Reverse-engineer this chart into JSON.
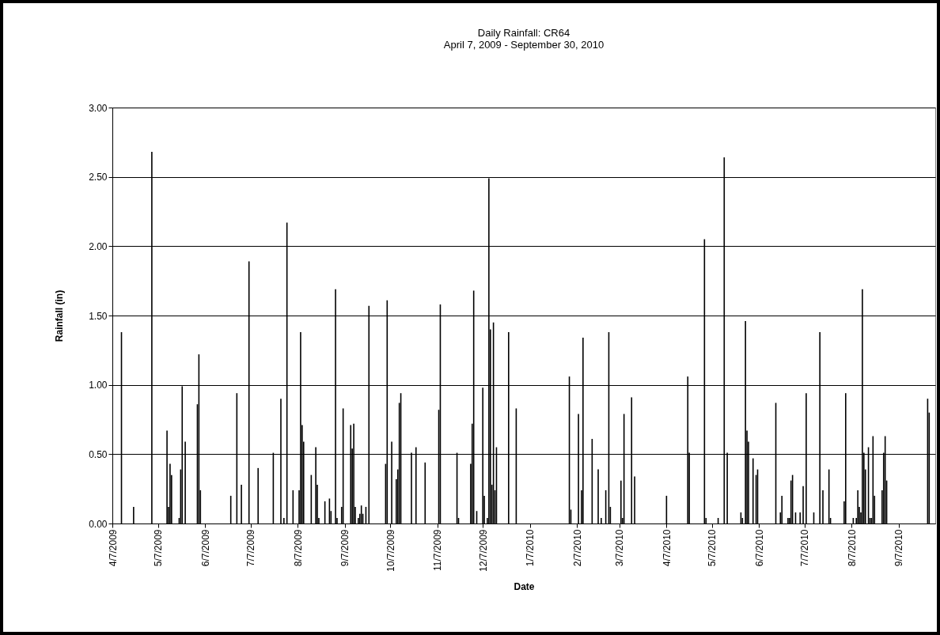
{
  "chart_data": {
    "type": "bar",
    "title": "Daily Rainfall: CR64",
    "subtitle": "April 7, 2009 - September 30, 2010",
    "xlabel": "Date",
    "ylabel": "Rainfall (in)",
    "x": [
      "2009-04-13",
      "2009-04-21",
      "2009-05-03",
      "2009-05-13",
      "2009-05-14",
      "2009-05-15",
      "2009-05-16",
      "2009-05-21",
      "2009-05-22",
      "2009-05-23",
      "2009-05-25",
      "2009-06-02",
      "2009-06-03",
      "2009-06-04",
      "2009-06-24",
      "2009-06-28",
      "2009-07-01",
      "2009-07-06",
      "2009-07-12",
      "2009-07-22",
      "2009-07-27",
      "2009-07-29",
      "2009-07-31",
      "2009-08-04",
      "2009-08-08",
      "2009-08-09",
      "2009-08-10",
      "2009-08-11",
      "2009-08-16",
      "2009-08-19",
      "2009-08-20",
      "2009-08-21",
      "2009-08-25",
      "2009-08-28",
      "2009-08-29",
      "2009-09-01",
      "2009-09-02",
      "2009-09-05",
      "2009-09-06",
      "2009-09-11",
      "2009-09-12",
      "2009-09-13",
      "2009-09-14",
      "2009-09-16",
      "2009-09-17",
      "2009-09-18",
      "2009-09-19",
      "2009-09-21",
      "2009-09-23",
      "2009-10-04",
      "2009-10-05",
      "2009-10-08",
      "2009-10-11",
      "2009-10-12",
      "2009-10-13",
      "2009-10-14",
      "2009-10-21",
      "2009-10-24",
      "2009-10-30",
      "2009-11-08",
      "2009-11-09",
      "2009-11-20",
      "2009-11-21",
      "2009-11-29",
      "2009-11-30",
      "2009-12-01",
      "2009-12-03",
      "2009-12-07",
      "2009-12-08",
      "2009-12-10",
      "2009-12-11",
      "2009-12-12",
      "2009-12-13",
      "2009-12-14",
      "2009-12-15",
      "2009-12-16",
      "2009-12-24",
      "2009-12-29",
      "2010-02-02",
      "2010-02-03",
      "2010-02-08",
      "2010-02-10",
      "2010-02-11",
      "2010-02-17",
      "2010-02-21",
      "2010-02-23",
      "2010-02-26",
      "2010-02-28",
      "2010-03-01",
      "2010-03-08",
      "2010-03-09",
      "2010-03-10",
      "2010-03-15",
      "2010-03-17",
      "2010-04-07",
      "2010-04-21",
      "2010-04-22",
      "2010-05-02",
      "2010-05-03",
      "2010-05-11",
      "2010-05-15",
      "2010-05-17",
      "2010-05-26",
      "2010-05-27",
      "2010-05-29",
      "2010-05-30",
      "2010-05-31",
      "2010-06-03",
      "2010-06-05",
      "2010-06-06",
      "2010-06-18",
      "2010-06-21",
      "2010-06-22",
      "2010-06-26",
      "2010-06-27",
      "2010-06-28",
      "2010-06-29",
      "2010-07-01",
      "2010-07-04",
      "2010-07-06",
      "2010-07-08",
      "2010-07-13",
      "2010-07-17",
      "2010-07-19",
      "2010-07-23",
      "2010-07-24",
      "2010-08-02",
      "2010-08-03",
      "2010-08-08",
      "2010-08-10",
      "2010-08-11",
      "2010-08-12",
      "2010-08-13",
      "2010-08-14",
      "2010-08-15",
      "2010-08-16",
      "2010-08-18",
      "2010-08-19",
      "2010-08-20",
      "2010-08-21",
      "2010-08-22",
      "2010-08-27",
      "2010-08-28",
      "2010-08-29",
      "2010-08-30",
      "2010-09-26",
      "2010-09-27"
    ],
    "series": [
      {
        "color": "#000000",
        "values": [
          1.38,
          0.12,
          2.68,
          0.67,
          0.12,
          0.43,
          0.35,
          0.04,
          0.39,
          0.99,
          0.59,
          0.86,
          1.22,
          0.24,
          0.2,
          0.94,
          0.28,
          1.89,
          0.4,
          0.51,
          0.9,
          0.04,
          2.17,
          0.24,
          0.24,
          1.38,
          0.71,
          0.59,
          0.35,
          0.55,
          0.28,
          0.04,
          0.16,
          0.18,
          0.09,
          1.69,
          0.04,
          0.12,
          0.83,
          0.71,
          0.54,
          0.72,
          0.12,
          0.04,
          0.07,
          0.13,
          0.07,
          0.12,
          1.57,
          0.43,
          1.61,
          0.59,
          0.32,
          0.39,
          0.87,
          0.94,
          0.51,
          0.55,
          0.44,
          0.82,
          1.58,
          0.51,
          0.04,
          0.43,
          0.72,
          1.68,
          0.09,
          0.98,
          0.2,
          0.04,
          2.49,
          1.4,
          0.28,
          1.45,
          0.24,
          0.55,
          1.38,
          0.83,
          1.06,
          0.1,
          0.79,
          0.24,
          1.34,
          0.61,
          0.39,
          0.04,
          0.24,
          1.38,
          0.12,
          0.31,
          0.04,
          0.79,
          0.91,
          0.34,
          0.2,
          1.06,
          0.51,
          2.05,
          0.04,
          0.04,
          2.64,
          0.51,
          0.08,
          0.04,
          1.46,
          0.67,
          0.59,
          0.47,
          0.35,
          0.39,
          0.87,
          0.08,
          0.2,
          0.04,
          0.04,
          0.31,
          0.35,
          0.08,
          0.08,
          0.27,
          0.94,
          0.08,
          1.38,
          0.24,
          0.39,
          0.04,
          0.16,
          0.94,
          0.04,
          0.04,
          0.24,
          0.12,
          0.08,
          1.69,
          0.51,
          0.39,
          0.55,
          0.04,
          0.04,
          0.63,
          0.2,
          0.24,
          0.51,
          0.63,
          0.31,
          0.9,
          0.8
        ]
      }
    ],
    "xlim": [
      "2009-04-07",
      "2010-10-01"
    ],
    "xticks": [
      {
        "value": "2009-04-07",
        "label": "4/7/2009"
      },
      {
        "value": "2009-05-07",
        "label": "5/7/2009"
      },
      {
        "value": "2009-06-07",
        "label": "6/7/2009"
      },
      {
        "value": "2009-07-07",
        "label": "7/7/2009"
      },
      {
        "value": "2009-08-07",
        "label": "8/7/2009"
      },
      {
        "value": "2009-09-07",
        "label": "9/7/2009"
      },
      {
        "value": "2009-10-07",
        "label": "10/7/2009"
      },
      {
        "value": "2009-11-07",
        "label": "11/7/2009"
      },
      {
        "value": "2009-12-07",
        "label": "12/7/2009"
      },
      {
        "value": "2010-01-07",
        "label": "1/7/2010"
      },
      {
        "value": "2010-02-07",
        "label": "2/7/2010"
      },
      {
        "value": "2010-03-07",
        "label": "3/7/2010"
      },
      {
        "value": "2010-04-07",
        "label": "4/7/2010"
      },
      {
        "value": "2010-05-07",
        "label": "5/7/2010"
      },
      {
        "value": "2010-06-07",
        "label": "6/7/2010"
      },
      {
        "value": "2010-07-07",
        "label": "7/7/2010"
      },
      {
        "value": "2010-08-07",
        "label": "8/7/2010"
      },
      {
        "value": "2010-09-07",
        "label": "9/7/2010"
      }
    ],
    "ylim": [
      0,
      3
    ],
    "yticks": [
      {
        "value": 0,
        "label": "0.00"
      },
      {
        "value": 0.5,
        "label": "0.50"
      },
      {
        "value": 1,
        "label": "1.00"
      },
      {
        "value": 1.5,
        "label": "1.50"
      },
      {
        "value": 2,
        "label": "2.00"
      },
      {
        "value": 2.5,
        "label": "2.50"
      },
      {
        "value": 3,
        "label": "3.00"
      }
    ],
    "grid": "y",
    "legend": false
  }
}
